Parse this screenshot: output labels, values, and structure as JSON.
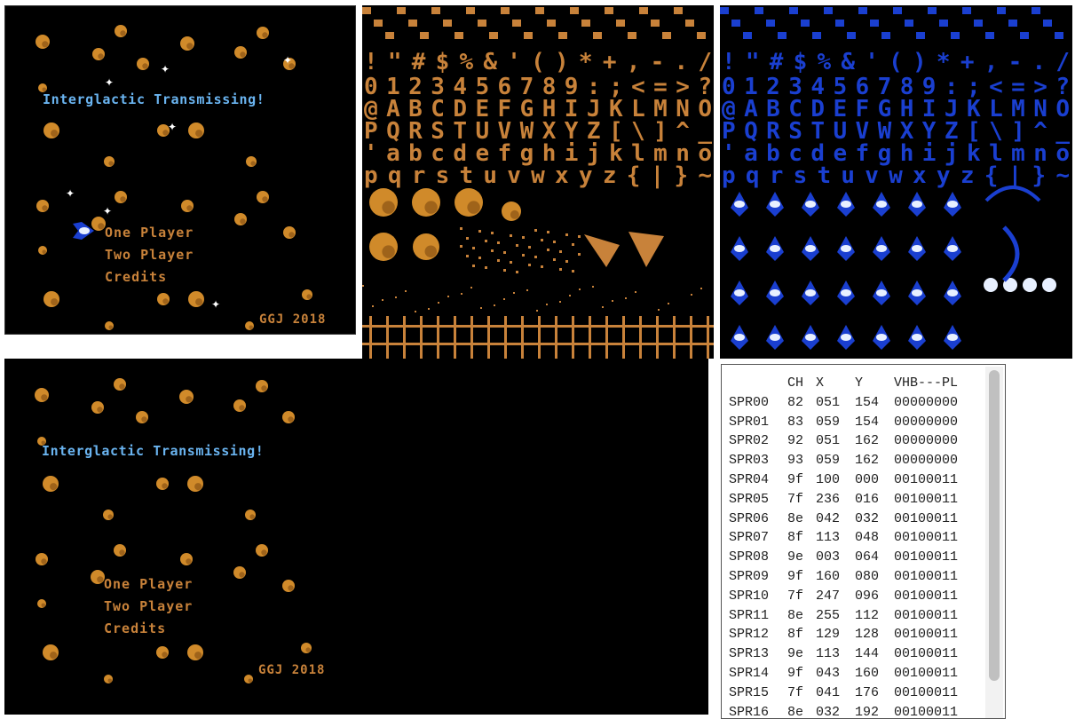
{
  "game_screen_live": {
    "title": "Interglactic Transmissing!",
    "menu": [
      "One Player",
      "Two Player",
      "Credits"
    ],
    "footer": "GGJ 2018",
    "cursor_icon": "ship-cursor-icon"
  },
  "game_screen_bg": {
    "title": "Interglactic Transmissing!",
    "menu": [
      "One Player",
      "Two Player",
      "Credits"
    ],
    "footer": "GGJ 2018"
  },
  "tileset_orange": {
    "rows": [
      "0123456789:;<=>?",
      "@ABCDEFGHIJKLMNO",
      "PQRSTUVWXYZ[\\]^_",
      "'abcdefghijklmno",
      "pqrstuvwxyz{|}~"
    ],
    "symbols_row": "!\"#$%&'()*+,-./",
    "color": "#c8823a"
  },
  "tileset_blue": {
    "rows": [
      "0123456789:;<=>?",
      "@ABCDEFGHIJKLMNO",
      "PQRSTUVWXYZ[\\]^_",
      "'abcdefghijklmno",
      "pqrstuvwxyz{|}~"
    ],
    "symbols_row": "!\"#$%&'()*+,-./",
    "color": "#1a3fd0"
  },
  "oam": {
    "headers": [
      "",
      "CH",
      "X",
      "Y",
      "VHB---PL"
    ],
    "rows": [
      [
        "SPR00",
        "82",
        "051",
        "154",
        "00000000"
      ],
      [
        "SPR01",
        "83",
        "059",
        "154",
        "00000000"
      ],
      [
        "SPR02",
        "92",
        "051",
        "162",
        "00000000"
      ],
      [
        "SPR03",
        "93",
        "059",
        "162",
        "00000000"
      ],
      [
        "SPR04",
        "9f",
        "100",
        "000",
        "00100011"
      ],
      [
        "SPR05",
        "7f",
        "236",
        "016",
        "00100011"
      ],
      [
        "SPR06",
        "8e",
        "042",
        "032",
        "00100011"
      ],
      [
        "SPR07",
        "8f",
        "113",
        "048",
        "00100011"
      ],
      [
        "SPR08",
        "9e",
        "003",
        "064",
        "00100011"
      ],
      [
        "SPR09",
        "9f",
        "160",
        "080",
        "00100011"
      ],
      [
        "SPR10",
        "7f",
        "247",
        "096",
        "00100011"
      ],
      [
        "SPR11",
        "8e",
        "255",
        "112",
        "00100011"
      ],
      [
        "SPR12",
        "8f",
        "129",
        "128",
        "00100011"
      ],
      [
        "SPR13",
        "9e",
        "113",
        "144",
        "00100011"
      ],
      [
        "SPR14",
        "9f",
        "043",
        "160",
        "00100011"
      ],
      [
        "SPR15",
        "7f",
        "041",
        "176",
        "00100011"
      ],
      [
        "SPR16",
        "8e",
        "032",
        "192",
        "00100011"
      ]
    ]
  },
  "colors": {
    "asteroid": "#d08a2a",
    "asteroid_shade": "#8a5214",
    "title_blue": "#6ab4f0",
    "orange_text": "#c8823a",
    "sprite_blue": "#1a3fd0"
  }
}
